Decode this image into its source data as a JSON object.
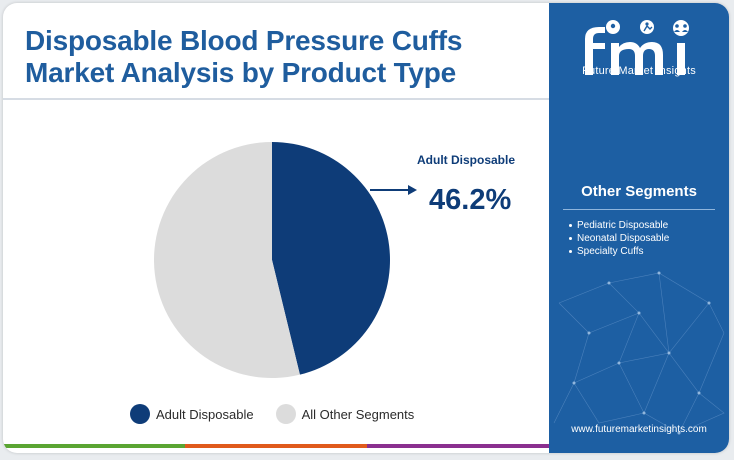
{
  "title_lines": [
    "Disposable Blood Pressure Cuffs",
    "Market Analysis by Product Type"
  ],
  "colors": {
    "title": "#1f5d9e",
    "adult": "#0e3c78",
    "other": "#dcdcdc",
    "sidebar": "#1d5fa3",
    "bottom_bar": [
      "#5aa532",
      "#e05a1c",
      "#8a2f8f"
    ]
  },
  "callout": {
    "label": "Adult Disposable",
    "value": "46.2%"
  },
  "chart_data": {
    "type": "pie",
    "title": "Disposable Blood Pressure Cuffs Market Analysis by Product Type",
    "slices": [
      {
        "label": "Adult Disposable",
        "value": 46.2,
        "color": "#0e3c78"
      },
      {
        "label": "All Other Segments",
        "value": 53.8,
        "color": "#dcdcdc"
      }
    ],
    "start": "top",
    "direction": "clockwise",
    "legend": "bottom"
  },
  "legend": [
    "Adult Disposable",
    "All Other Segments"
  ],
  "sidebar": {
    "logo_icons": [
      "pin-icon",
      "running-person-icon",
      "people-icon"
    ],
    "logo_text": "Future Market Insights",
    "other_title": "Other Segments",
    "other_items": [
      "Pediatric Disposable",
      "Neonatal Disposable",
      "Specialty Cuffs"
    ],
    "website": "www.futuremarketinsights.com"
  }
}
